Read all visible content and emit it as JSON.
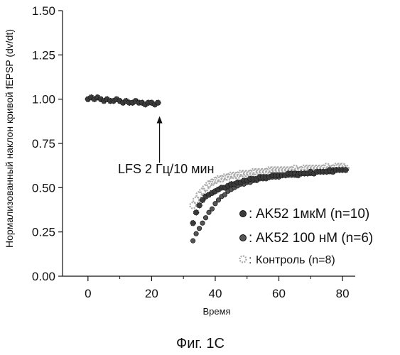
{
  "chart_data": {
    "type": "scatter",
    "title": "",
    "xlabel": "Время",
    "ylabel": "Нормализованный наклон кривой fEPSP (dv/dt)",
    "xlim": [
      -8,
      84
    ],
    "ylim": [
      0,
      1.5
    ],
    "x_ticks": [
      "0",
      "20",
      "40",
      "60",
      "80"
    ],
    "y_ticks": [
      "0.00",
      "0.25",
      "0.50",
      "0.75",
      "1.00",
      "1.25",
      "1.50"
    ],
    "grid": false,
    "legend_position": "lower-right",
    "annotation": {
      "text": "LFS 2 Гц/10 мин",
      "x": 22.5,
      "y_from": 0.6,
      "y_to": 0.92
    },
    "series": [
      {
        "name": "AK52 1мкМ (n=10)",
        "marker_color": "#3a3a3a",
        "points_x": [
          0,
          1,
          2,
          3,
          4,
          5,
          6,
          7,
          8,
          9,
          10,
          11,
          12,
          13,
          14,
          15,
          16,
          17,
          18,
          19,
          20,
          21,
          22,
          33,
          34,
          35,
          36,
          37,
          38,
          39,
          40,
          41,
          42,
          43,
          44,
          45,
          46,
          47,
          48,
          49,
          50,
          51,
          52,
          53,
          54,
          55,
          56,
          57,
          58,
          59,
          60,
          61,
          62,
          63,
          64,
          65,
          66,
          67,
          68,
          69,
          70,
          71,
          72,
          73,
          74,
          75,
          76,
          77,
          78,
          79,
          80,
          81
        ],
        "points_y": [
          1.0,
          1.01,
          1.0,
          1.01,
          1.0,
          0.99,
          1.0,
          0.99,
          0.99,
          1.0,
          0.99,
          0.98,
          0.99,
          0.98,
          0.98,
          0.99,
          0.98,
          0.98,
          0.97,
          0.98,
          0.98,
          0.97,
          0.98,
          0.3,
          0.36,
          0.4,
          0.43,
          0.45,
          0.46,
          0.47,
          0.48,
          0.49,
          0.5,
          0.5,
          0.51,
          0.52,
          0.52,
          0.53,
          0.53,
          0.54,
          0.54,
          0.55,
          0.55,
          0.55,
          0.56,
          0.56,
          0.56,
          0.56,
          0.57,
          0.57,
          0.57,
          0.57,
          0.57,
          0.58,
          0.58,
          0.58,
          0.57,
          0.58,
          0.58,
          0.58,
          0.59,
          0.58,
          0.59,
          0.59,
          0.59,
          0.59,
          0.6,
          0.59,
          0.6,
          0.6,
          0.6,
          0.6
        ]
      },
      {
        "name": "AK52 100 нМ (n=6)",
        "marker_color": "#555555",
        "points_x": [
          33,
          34,
          35,
          36,
          37,
          38,
          39,
          40,
          41,
          42,
          43,
          44,
          45,
          46,
          47,
          48,
          49,
          50,
          51,
          52,
          53,
          54,
          55,
          56,
          57,
          58,
          59,
          60,
          61,
          62,
          63,
          64,
          65,
          66,
          67,
          68,
          69,
          70,
          71,
          72,
          73,
          74,
          75,
          76,
          77,
          78,
          79,
          80,
          81
        ],
        "points_y": [
          0.2,
          0.24,
          0.27,
          0.3,
          0.33,
          0.36,
          0.38,
          0.41,
          0.43,
          0.45,
          0.46,
          0.48,
          0.49,
          0.5,
          0.51,
          0.52,
          0.52,
          0.53,
          0.53,
          0.54,
          0.54,
          0.55,
          0.55,
          0.55,
          0.56,
          0.56,
          0.56,
          0.56,
          0.57,
          0.57,
          0.57,
          0.57,
          0.57,
          0.58,
          0.58,
          0.58,
          0.58,
          0.58,
          0.58,
          0.59,
          0.59,
          0.59,
          0.59,
          0.59,
          0.6,
          0.6,
          0.6,
          0.6,
          0.6
        ]
      },
      {
        "name": "Контроль (n=8)",
        "marker_color": "#aaaaaa",
        "points_x": [
          33,
          34,
          35,
          36,
          37,
          38,
          39,
          40,
          41,
          42,
          43,
          44,
          45,
          46,
          47,
          48,
          49,
          50,
          51,
          52,
          53,
          54,
          55,
          56,
          57,
          58,
          59,
          60,
          61,
          62,
          63,
          64,
          65,
          66,
          67,
          68,
          69,
          70,
          71,
          72,
          73,
          74,
          75,
          76,
          77,
          78,
          79,
          80,
          81
        ],
        "points_y": [
          0.4,
          0.43,
          0.46,
          0.48,
          0.5,
          0.52,
          0.53,
          0.54,
          0.55,
          0.55,
          0.56,
          0.56,
          0.57,
          0.57,
          0.57,
          0.58,
          0.58,
          0.58,
          0.58,
          0.59,
          0.59,
          0.59,
          0.59,
          0.59,
          0.6,
          0.6,
          0.6,
          0.6,
          0.6,
          0.6,
          0.6,
          0.6,
          0.61,
          0.6,
          0.6,
          0.61,
          0.61,
          0.61,
          0.61,
          0.61,
          0.61,
          0.61,
          0.62,
          0.61,
          0.61,
          0.62,
          0.62,
          0.62,
          0.61
        ]
      }
    ]
  },
  "legend_marker_glyph": ":",
  "caption": "Фиг. 1С"
}
